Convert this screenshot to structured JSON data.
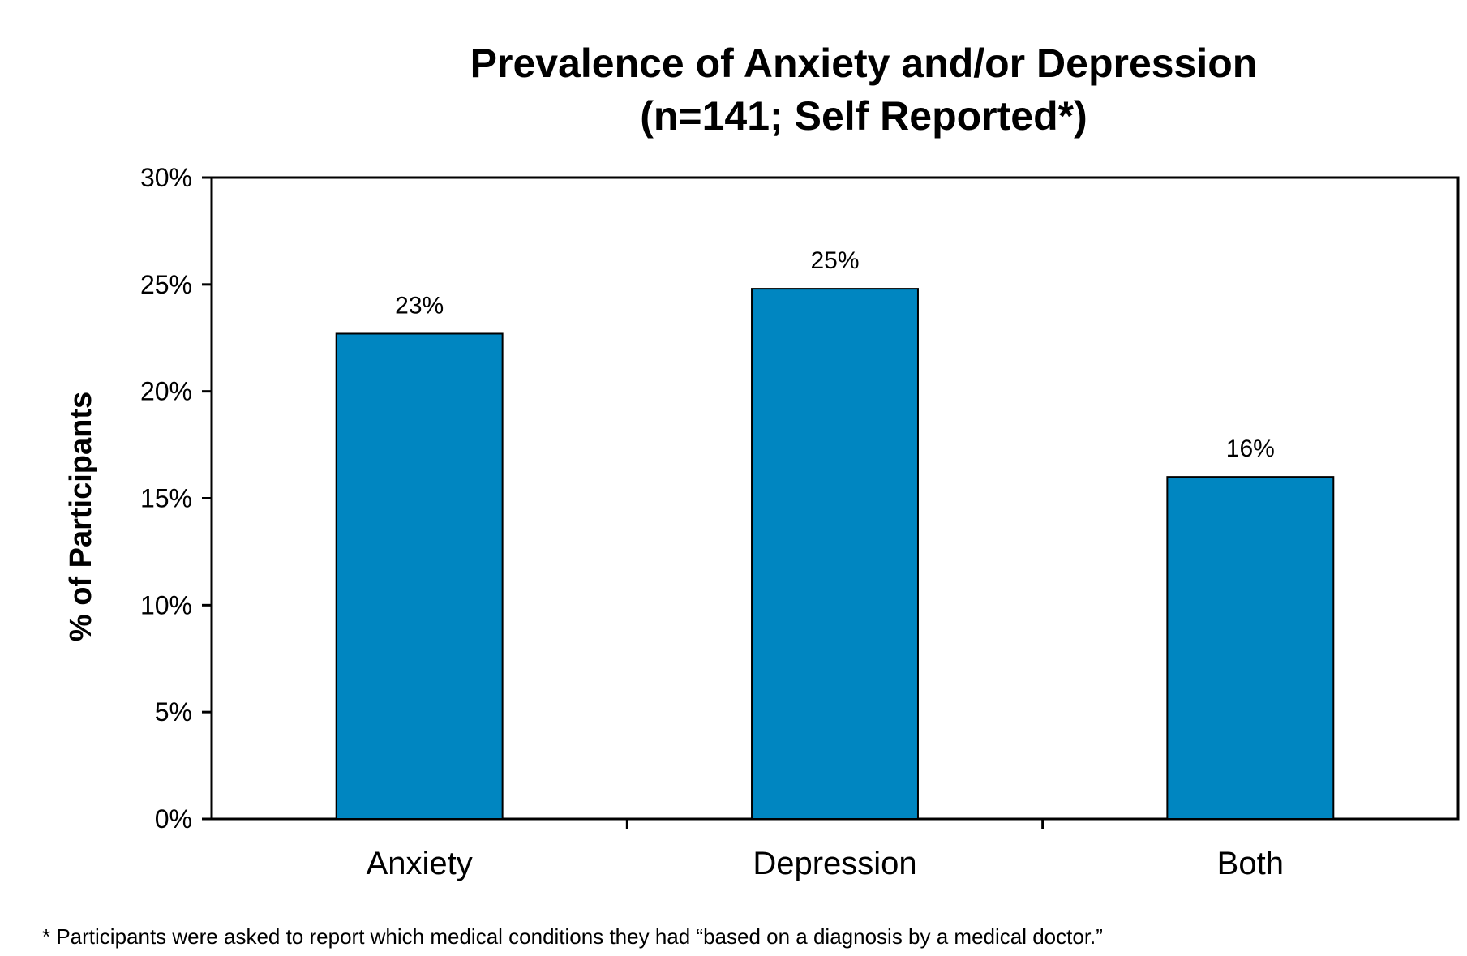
{
  "chart_data": {
    "type": "bar",
    "title": "Prevalence of Anxiety and/or Depression",
    "subtitle": "(n=141; Self Reported*)",
    "xlabel": "",
    "ylabel": "% of Participants",
    "categories": [
      "Anxiety",
      "Depression",
      "Both"
    ],
    "values": [
      22.7,
      24.8,
      16.0
    ],
    "data_labels": [
      "23%",
      "25%",
      "16%"
    ],
    "ylim": [
      0,
      30
    ],
    "yticks": [
      0,
      5,
      10,
      15,
      20,
      25,
      30
    ],
    "ytick_labels": [
      "0%",
      "5%",
      "10%",
      "15%",
      "20%",
      "25%",
      "30%"
    ],
    "bar_color": "#0086C1",
    "grid": false,
    "legend": "none"
  },
  "footnote": "* Participants were asked to report which medical conditions they had “based on a diagnosis by a medical doctor.”"
}
